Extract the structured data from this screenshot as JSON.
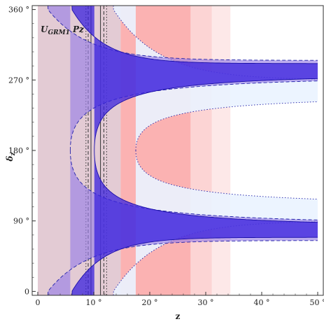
{
  "chart_data": {
    "type": "area",
    "title": "",
    "panel_label": {
      "main": "U",
      "sub": "GRM1",
      "suffix": " Pz"
    },
    "xlabel": "z",
    "ylabel": "δ",
    "ylabel_sub": "z",
    "xlim": [
      -1,
      51
    ],
    "ylim": [
      -5,
      365
    ],
    "x_ticks": [
      {
        "value": 0,
        "label": "0"
      },
      {
        "value": 10,
        "label": "10 °"
      },
      {
        "value": 20,
        "label": "20 °"
      },
      {
        "value": 30,
        "label": "30 °"
      },
      {
        "value": 40,
        "label": "40 °"
      },
      {
        "value": 50,
        "label": "50 °"
      }
    ],
    "y_ticks": [
      {
        "value": 0,
        "label": "0"
      },
      {
        "value": 90,
        "label": "90 °"
      },
      {
        "value": 180,
        "label": "180 °"
      },
      {
        "value": 270,
        "label": "270 °"
      },
      {
        "value": 360,
        "label": "360 °"
      }
    ],
    "vertical_bands": [
      {
        "name": "pink-band-1",
        "x": [
          0,
          14.8
        ],
        "color": "#e3cbd4"
      },
      {
        "name": "pink-band-2",
        "x": [
          14.8,
          27.3
        ],
        "color": "#fbb2b2"
      },
      {
        "name": "pink-band-3",
        "x": [
          27.3,
          31.1
        ],
        "color": "#fcd4d4"
      },
      {
        "name": "pink-band-4",
        "x": [
          31.1,
          34.4
        ],
        "color": "#fde8e8"
      }
    ],
    "vertical_lines": [
      {
        "name": "vline-solid-1",
        "x": 9.5,
        "style": "solid"
      },
      {
        "name": "vline-solid-2",
        "x": 11.2,
        "style": "solid"
      },
      {
        "name": "vline-dashed-1",
        "x": 9.0,
        "style": "dashed"
      },
      {
        "name": "vline-dashed-2",
        "x": 11.8,
        "style": "dashed"
      },
      {
        "name": "vline-dotted-1",
        "x": 8.6,
        "style": "dotted"
      },
      {
        "name": "vline-dotted-2",
        "x": 12.3,
        "style": "dotted"
      }
    ],
    "hyperbolic_bands": [
      {
        "name": "dotted-region",
        "x0": 17.5,
        "center": 180,
        "asym_in": 250,
        "asym_out": 270,
        "scale": 75,
        "color": "#eaf3ff",
        "opacity": 0.9,
        "edge": "dotted"
      },
      {
        "name": "dashed-region",
        "x0": 5.8,
        "center": 180,
        "asym_in": 275,
        "asym_out": 295,
        "scale": 66,
        "color": "#9a80e6",
        "opacity": 0.65,
        "edge": "dashed"
      },
      {
        "name": "solid-region",
        "x0": 10.1,
        "center": 180,
        "asym_in": 277,
        "asym_out": 291,
        "scale": 52,
        "color": "#3a22dd",
        "opacity": 0.75,
        "edge": "solid"
      }
    ]
  }
}
